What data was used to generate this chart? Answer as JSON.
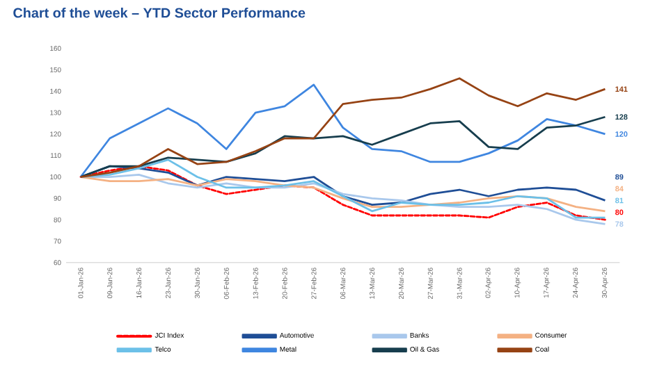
{
  "chart_data": {
    "type": "line",
    "title": "Chart of the week – YTD Sector Performance",
    "categories": [
      "01-Jan-26",
      "09-Jan-26",
      "16-Jan-26",
      "23-Jan-26",
      "30-Jan-26",
      "06-Feb-26",
      "13-Feb-26",
      "20-Feb-26",
      "27-Feb-26",
      "06-Mar-26",
      "13-Mar-26",
      "20-Mar-26",
      "27-Mar-26",
      "31-Mar-26",
      "02-Apr-26",
      "10-Apr-26",
      "17-Apr-26",
      "24-Apr-26",
      "30-Apr-26"
    ],
    "ylim": [
      60,
      160
    ],
    "yticks": [
      60,
      70,
      80,
      90,
      100,
      110,
      120,
      130,
      140,
      150,
      160
    ],
    "legend": "bottom",
    "marker": "none",
    "series": [
      {
        "name": "JCI Index",
        "color": "#ff0000",
        "line_style": "dashed",
        "values": [
          100,
          103,
          105,
          103,
          96,
          92,
          94,
          96,
          95,
          87,
          82,
          82,
          82,
          82,
          81,
          86,
          88,
          82,
          80
        ],
        "value_labels": [
          null,
          null,
          null,
          null,
          null,
          null,
          null,
          null,
          null,
          null,
          null,
          null,
          null,
          null,
          null,
          null,
          null,
          null,
          "80"
        ]
      },
      {
        "name": "Automotive",
        "color": "#1f4e96",
        "values": [
          100,
          105,
          104,
          102,
          96,
          100,
          99,
          98,
          100,
          91,
          87,
          88,
          92,
          94,
          91,
          94,
          95,
          94,
          89
        ],
        "value_labels": [
          null,
          null,
          null,
          null,
          null,
          null,
          null,
          null,
          null,
          null,
          null,
          null,
          null,
          null,
          null,
          null,
          null,
          null,
          "89"
        ]
      },
      {
        "name": "Banks",
        "color": "#a9c8ec",
        "values": [
          100,
          100,
          101,
          97,
          95,
          97,
          95,
          95,
          97,
          92,
          90,
          89,
          87,
          86,
          86,
          87,
          85,
          80,
          78
        ],
        "value_labels": [
          null,
          null,
          null,
          null,
          null,
          null,
          null,
          null,
          null,
          null,
          null,
          null,
          null,
          null,
          null,
          null,
          null,
          null,
          "78"
        ]
      },
      {
        "name": "Consumer",
        "color": "#f4b183",
        "values": [
          100,
          98,
          98,
          99,
          96,
          99,
          98,
          96,
          95,
          90,
          86,
          86,
          87,
          88,
          90,
          91,
          90,
          86,
          84
        ],
        "value_labels": [
          null,
          null,
          null,
          null,
          null,
          null,
          null,
          null,
          null,
          null,
          null,
          null,
          null,
          null,
          null,
          null,
          null,
          null,
          "84"
        ]
      },
      {
        "name": "Telco",
        "color": "#6cc0e8",
        "values": [
          100,
          101,
          104,
          108,
          100,
          95,
          95,
          96,
          98,
          91,
          84,
          88,
          87,
          87,
          88,
          91,
          90,
          81,
          81
        ],
        "value_labels": [
          null,
          null,
          null,
          null,
          null,
          null,
          null,
          null,
          null,
          null,
          null,
          null,
          null,
          null,
          null,
          null,
          null,
          null,
          "81"
        ]
      },
      {
        "name": "Metal",
        "color": "#3f86e0",
        "values": [
          100,
          118,
          125,
          132,
          125,
          113,
          130,
          133,
          143,
          123,
          113,
          112,
          107,
          107,
          111,
          117,
          127,
          124,
          120
        ],
        "value_labels": [
          null,
          null,
          null,
          null,
          null,
          null,
          null,
          null,
          null,
          null,
          null,
          null,
          null,
          null,
          null,
          null,
          null,
          null,
          "120"
        ]
      },
      {
        "name": "Oil & Gas",
        "color": "#173e4e",
        "values": [
          100,
          105,
          105,
          109,
          108,
          107,
          111,
          119,
          118,
          119,
          115,
          120,
          125,
          126,
          114,
          113,
          123,
          124,
          128
        ],
        "value_labels": [
          null,
          null,
          null,
          null,
          null,
          null,
          null,
          null,
          null,
          null,
          null,
          null,
          null,
          null,
          null,
          null,
          null,
          null,
          "128"
        ]
      },
      {
        "name": "Coal",
        "color": "#964314",
        "values": [
          100,
          102,
          105,
          113,
          106,
          107,
          112,
          118,
          118,
          134,
          136,
          137,
          141,
          146,
          138,
          133,
          139,
          136,
          141
        ],
        "value_labels": [
          null,
          null,
          null,
          null,
          null,
          null,
          null,
          null,
          null,
          null,
          null,
          null,
          null,
          null,
          null,
          null,
          null,
          null,
          "141"
        ]
      }
    ]
  }
}
